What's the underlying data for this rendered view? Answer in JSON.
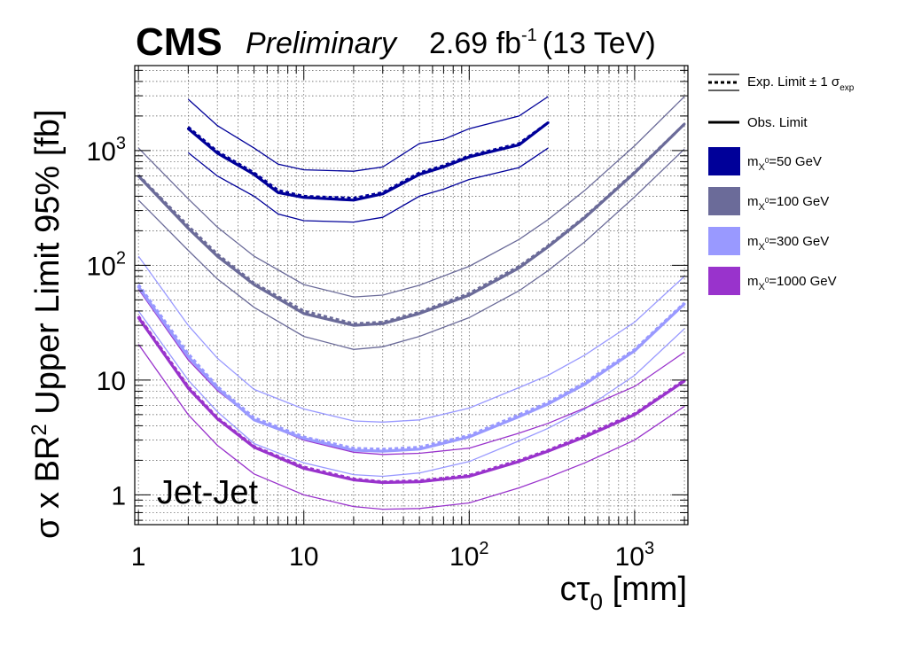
{
  "header": {
    "experiment": "CMS",
    "status": "Preliminary",
    "lumi": "2.69 fb",
    "lumi_exp": "-1",
    "energy": "(13 TeV)"
  },
  "chart_data": {
    "type": "line",
    "x_scale": "log",
    "y_scale": "log",
    "xlim": [
      0.95,
      2100
    ],
    "ylim": [
      0.55,
      5500
    ],
    "xlabel": "cτ",
    "xlabel_sub": "0",
    "xlabel_unit": " [mm]",
    "ylabel": "σ x BR",
    "ylabel_sup": "2",
    "ylabel_rest": " Upper Limit 95% [fb]",
    "x_ticks": [
      {
        "value": 1,
        "base": "1",
        "exp": ""
      },
      {
        "value": 10,
        "base": "10",
        "exp": ""
      },
      {
        "value": 100,
        "base": "10",
        "exp": "2"
      },
      {
        "value": 1000,
        "base": "10",
        "exp": "3"
      }
    ],
    "y_ticks": [
      {
        "value": 1,
        "base": "1",
        "exp": ""
      },
      {
        "value": 10,
        "base": "10",
        "exp": ""
      },
      {
        "value": 100,
        "base": "10",
        "exp": "2"
      },
      {
        "value": 1000,
        "base": "10",
        "exp": "3"
      }
    ],
    "annotation": "Jet-Jet",
    "grid": true,
    "legend_position": "right",
    "legend": {
      "expected": {
        "text": "Exp. Limit ± 1 σ",
        "sub": "exp"
      },
      "observed": {
        "text": "Obs. Limit"
      },
      "mass_prefix": "m",
      "mass_sub": "X",
      "mass_sup": "0"
    },
    "series": [
      {
        "name": "=50 GeV",
        "color": "#000099",
        "x": [
          2,
          3,
          5,
          7,
          10,
          20,
          30,
          50,
          70,
          100,
          200,
          300
        ],
        "obs": [
          1550,
          950,
          620,
          430,
          390,
          370,
          420,
          620,
          720,
          880,
          1120,
          1750
        ],
        "exp": [
          1600,
          980,
          640,
          450,
          400,
          385,
          430,
          640,
          740,
          900,
          1150,
          1750
        ],
        "exp_up": [
          2800,
          1650,
          1050,
          760,
          680,
          660,
          720,
          1150,
          1250,
          1550,
          2000,
          2950
        ],
        "exp_down": [
          960,
          600,
          400,
          280,
          245,
          238,
          262,
          400,
          460,
          560,
          710,
          1050
        ]
      },
      {
        "name": "=100 GeV",
        "color": "#6b6b99",
        "x": [
          1,
          2,
          3,
          5,
          10,
          20,
          30,
          50,
          100,
          200,
          300,
          500,
          1000,
          2000
        ],
        "obs": [
          600,
          210,
          120,
          68,
          38,
          30,
          31,
          38,
          55,
          95,
          145,
          260,
          640,
          1700
        ],
        "exp": [
          610,
          220,
          125,
          70,
          40,
          31,
          32,
          39,
          57,
          98,
          148,
          265,
          650,
          1700
        ],
        "exp_up": [
          1050,
          380,
          215,
          120,
          68,
          53,
          55,
          67,
          98,
          168,
          250,
          450,
          1100,
          2950
        ],
        "exp_down": [
          370,
          135,
          76,
          43,
          24,
          18.5,
          19.5,
          24,
          35,
          60,
          90,
          160,
          395,
          1030
        ]
      },
      {
        "name": "=300 GeV",
        "color": "#9999ff",
        "x": [
          1,
          2,
          3,
          5,
          10,
          20,
          30,
          50,
          100,
          200,
          300,
          500,
          1000,
          2000
        ],
        "obs": [
          65,
          16,
          8.5,
          4.5,
          3.1,
          2.45,
          2.4,
          2.5,
          3.2,
          4.8,
          6.2,
          9.2,
          18,
          46
        ],
        "exp": [
          68,
          17,
          8.8,
          4.7,
          3.2,
          2.55,
          2.5,
          2.6,
          3.3,
          5.0,
          6.4,
          9.5,
          18.5,
          47
        ],
        "exp_up": [
          120,
          30,
          15.5,
          8.3,
          5.6,
          4.4,
          4.3,
          4.5,
          5.7,
          8.6,
          11,
          16.5,
          32,
          80
        ],
        "exp_down": [
          40,
          10,
          5.3,
          2.8,
          1.9,
          1.5,
          1.45,
          1.55,
          1.95,
          2.95,
          3.8,
          5.6,
          11,
          28
        ]
      },
      {
        "name": "=1000 GeV",
        "color": "#9933cc",
        "x": [
          1,
          2,
          3,
          5,
          10,
          20,
          30,
          50,
          100,
          200,
          300,
          500,
          1000,
          2000
        ],
        "obs": [
          35,
          8.5,
          4.6,
          2.6,
          1.7,
          1.35,
          1.28,
          1.3,
          1.45,
          1.95,
          2.4,
          3.2,
          5.0,
          9.8
        ],
        "exp": [
          36,
          8.8,
          4.7,
          2.65,
          1.75,
          1.38,
          1.3,
          1.33,
          1.48,
          2.0,
          2.45,
          3.3,
          5.1,
          10
        ],
        "exp_up": [
          62,
          15,
          8.1,
          4.55,
          3.0,
          2.35,
          2.25,
          2.3,
          2.55,
          3.45,
          4.2,
          5.7,
          8.8,
          17.5
        ],
        "exp_down": [
          20.5,
          5.0,
          2.7,
          1.52,
          1.0,
          0.79,
          0.75,
          0.76,
          0.85,
          1.15,
          1.42,
          1.9,
          3.0,
          5.9
        ]
      }
    ]
  }
}
